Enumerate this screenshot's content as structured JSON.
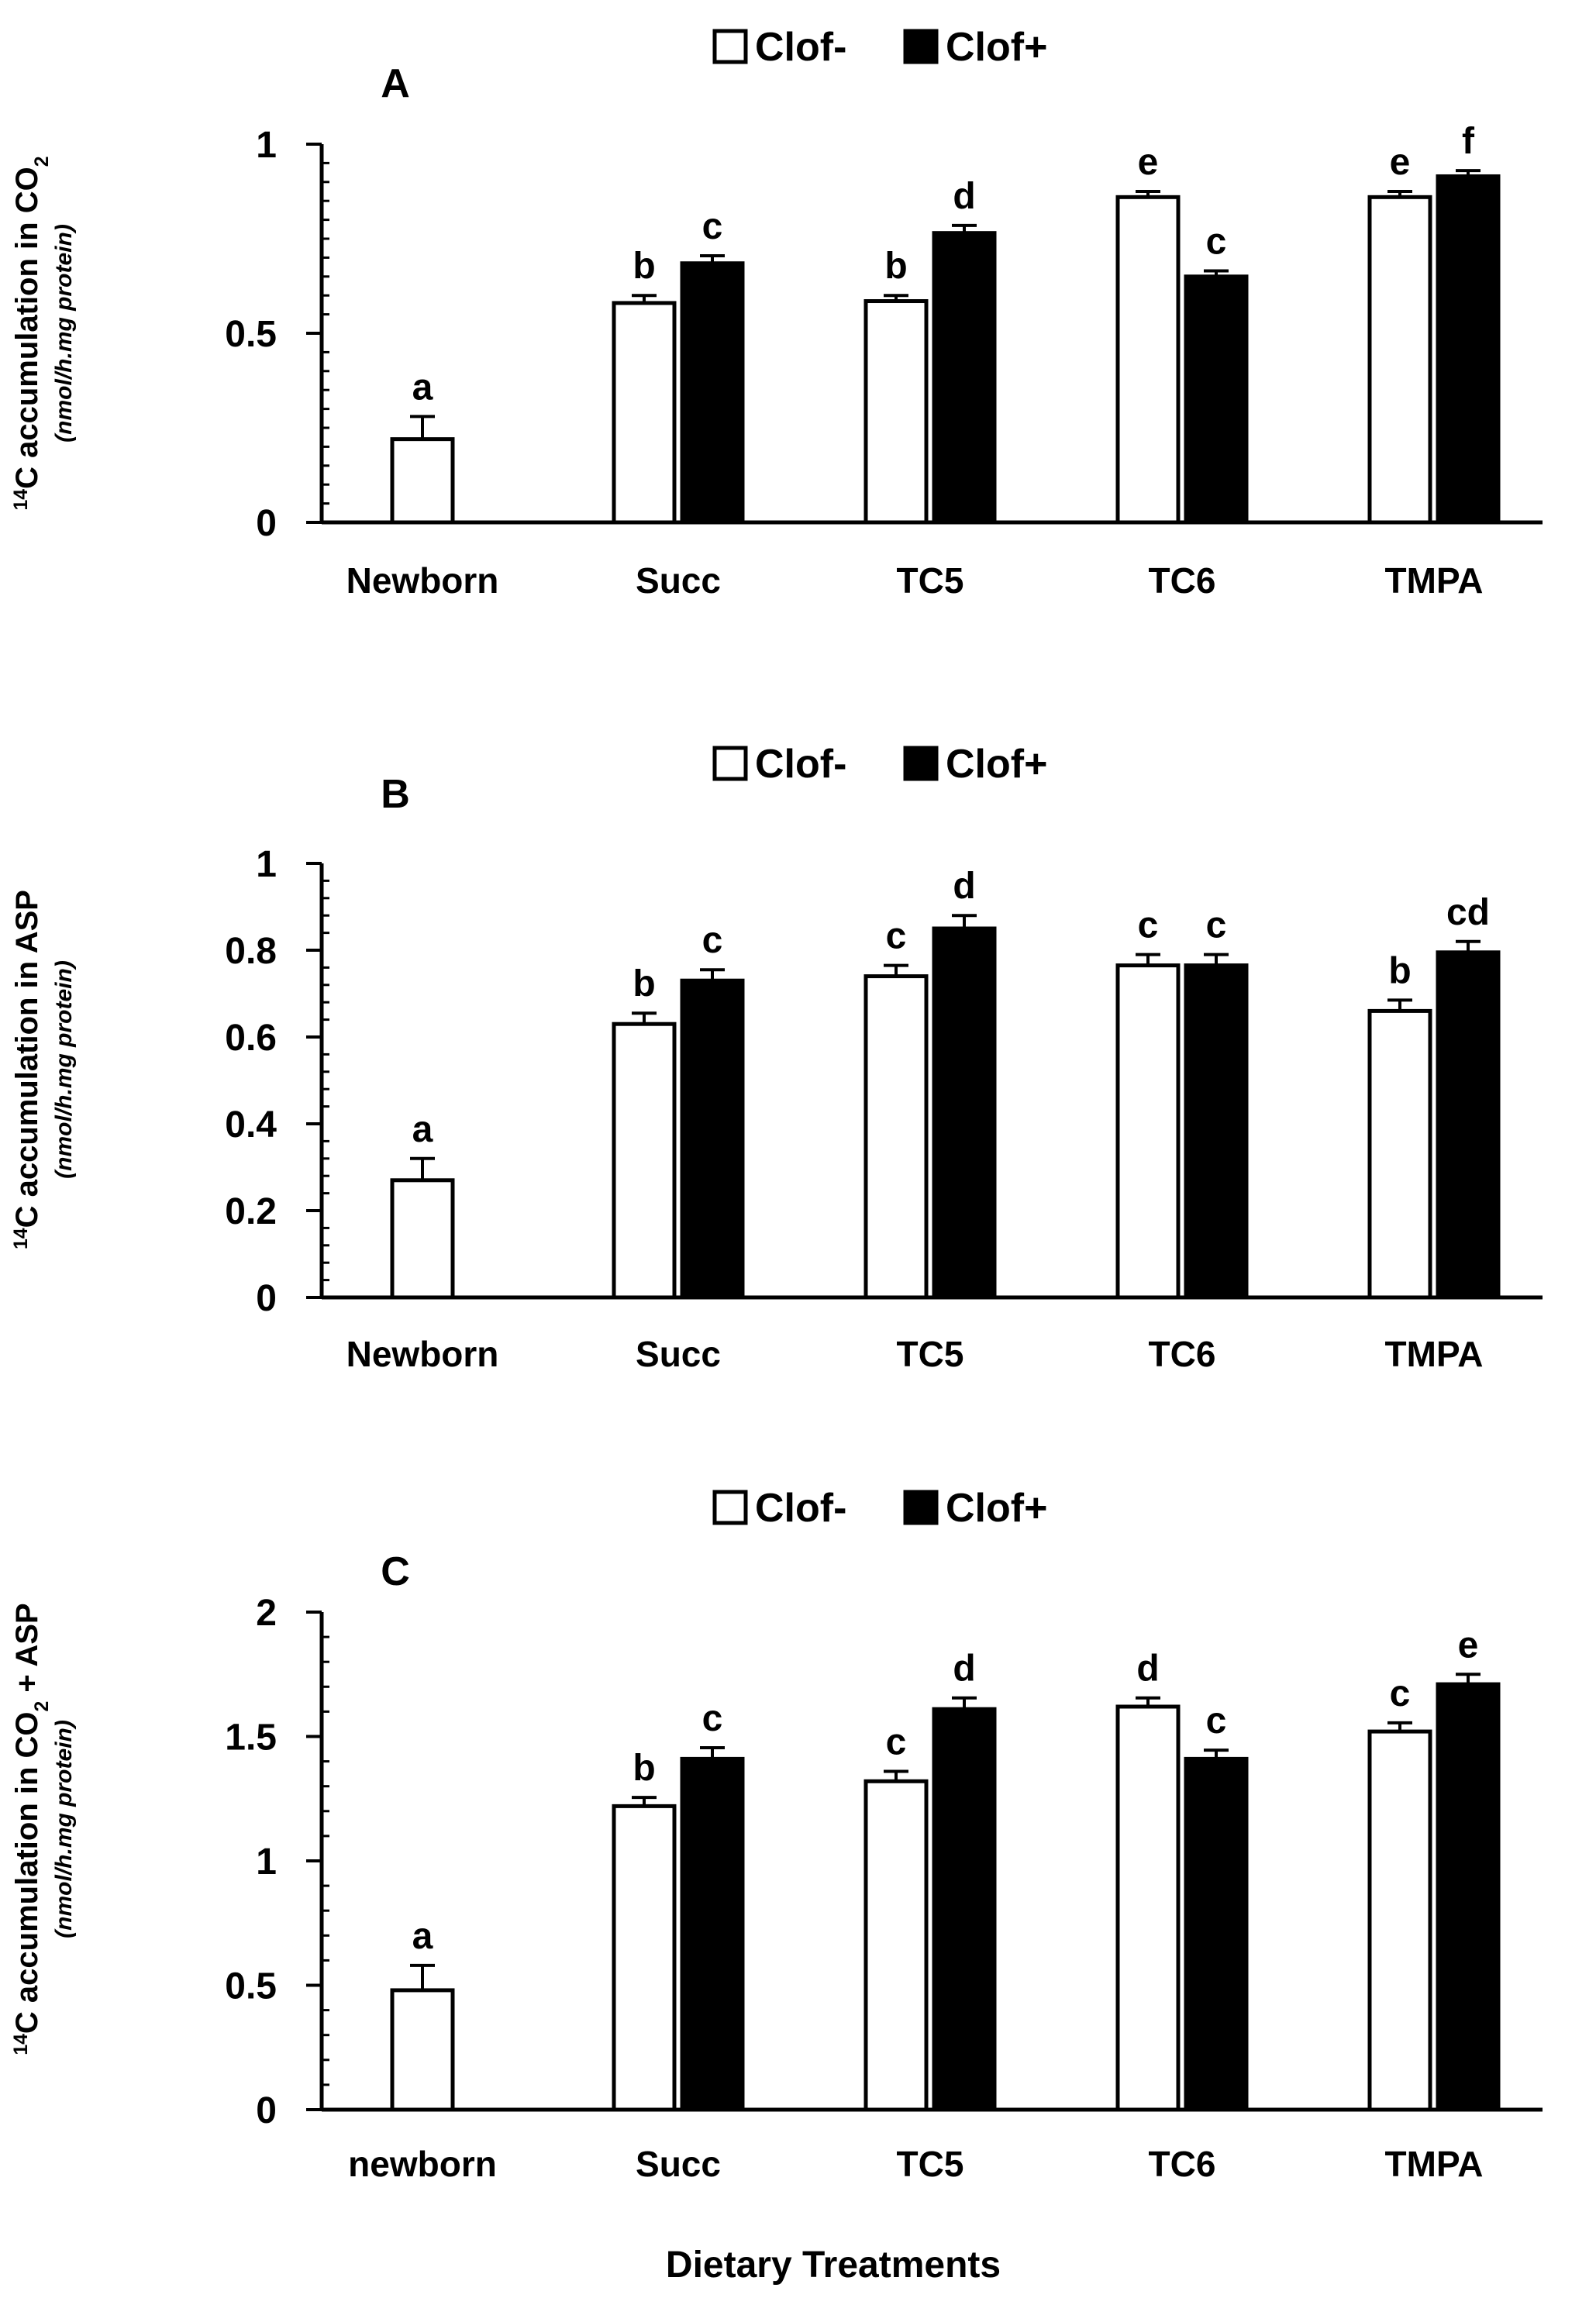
{
  "legend": {
    "clof_minus": "Clof-",
    "clof_plus": "Clof+"
  },
  "colors": {
    "clof_minus_fill": "#ffffff",
    "clof_plus_fill": "#000000",
    "axis": "#000000"
  },
  "xlabel_global": "Dietary Treatments",
  "chart_data": [
    {
      "type": "bar",
      "panel": "A",
      "ylabel_main": "14C accumulation in CO2",
      "ylabel_sub": "(nmol/h.mg protein)",
      "ylim": [
        0,
        1
      ],
      "yticks": [
        "0",
        "0.5",
        "1"
      ],
      "categories": [
        "Newborn",
        "Succ",
        "TC5",
        "TC6",
        "TMPA"
      ],
      "series": [
        {
          "name": "Clof-",
          "values": [
            0.22,
            0.58,
            0.585,
            0.86,
            0.86
          ],
          "errors": [
            0.06,
            0.02,
            0.015,
            0.015,
            0.015
          ],
          "letters": [
            "a",
            "b",
            "b",
            "e",
            "e"
          ]
        },
        {
          "name": "Clof+",
          "values": [
            null,
            0.685,
            0.765,
            0.65,
            0.915
          ],
          "errors": [
            null,
            0.02,
            0.02,
            0.015,
            0.015
          ],
          "letters": [
            "",
            "c",
            "d",
            "c",
            "f"
          ]
        }
      ]
    },
    {
      "type": "bar",
      "panel": "B",
      "ylabel_main": "14C accumulation in ASP",
      "ylabel_sub": "(nmol/h.mg protein)",
      "ylim": [
        0,
        1
      ],
      "yticks": [
        "0",
        "0.2",
        "0.4",
        "0.6",
        "0.8",
        "1"
      ],
      "categories": [
        "Newborn",
        "Succ",
        "TC5",
        "TC6",
        "TMPA"
      ],
      "series": [
        {
          "name": "Clof-",
          "values": [
            0.27,
            0.63,
            0.74,
            0.765,
            0.66
          ],
          "errors": [
            0.05,
            0.025,
            0.025,
            0.025,
            0.025
          ],
          "letters": [
            "a",
            "b",
            "c",
            "c",
            "b"
          ]
        },
        {
          "name": "Clof+",
          "values": [
            null,
            0.73,
            0.85,
            0.765,
            0.795
          ],
          "errors": [
            null,
            0.025,
            0.03,
            0.025,
            0.025
          ],
          "letters": [
            "",
            "c",
            "d",
            "c",
            "cd"
          ]
        }
      ]
    },
    {
      "type": "bar",
      "panel": "C",
      "ylabel_main": "14C accumulation in CO2 + ASP",
      "ylabel_sub": "(nmol/h.mg protein)",
      "ylim": [
        0,
        2
      ],
      "yticks": [
        "0",
        "0.5",
        "1",
        "1.5",
        "2"
      ],
      "categories": [
        "newborn",
        "Succ",
        "TC5",
        "TC6",
        "TMPA"
      ],
      "series": [
        {
          "name": "Clof-",
          "values": [
            0.48,
            1.22,
            1.32,
            1.62,
            1.52
          ],
          "errors": [
            0.1,
            0.035,
            0.04,
            0.035,
            0.035
          ],
          "letters": [
            "a",
            "b",
            "c",
            "d",
            "c"
          ]
        },
        {
          "name": "Clof+",
          "values": [
            null,
            1.41,
            1.61,
            1.41,
            1.71
          ],
          "errors": [
            null,
            0.045,
            0.045,
            0.035,
            0.04
          ],
          "letters": [
            "",
            "c",
            "d",
            "c",
            "e"
          ]
        }
      ]
    }
  ]
}
